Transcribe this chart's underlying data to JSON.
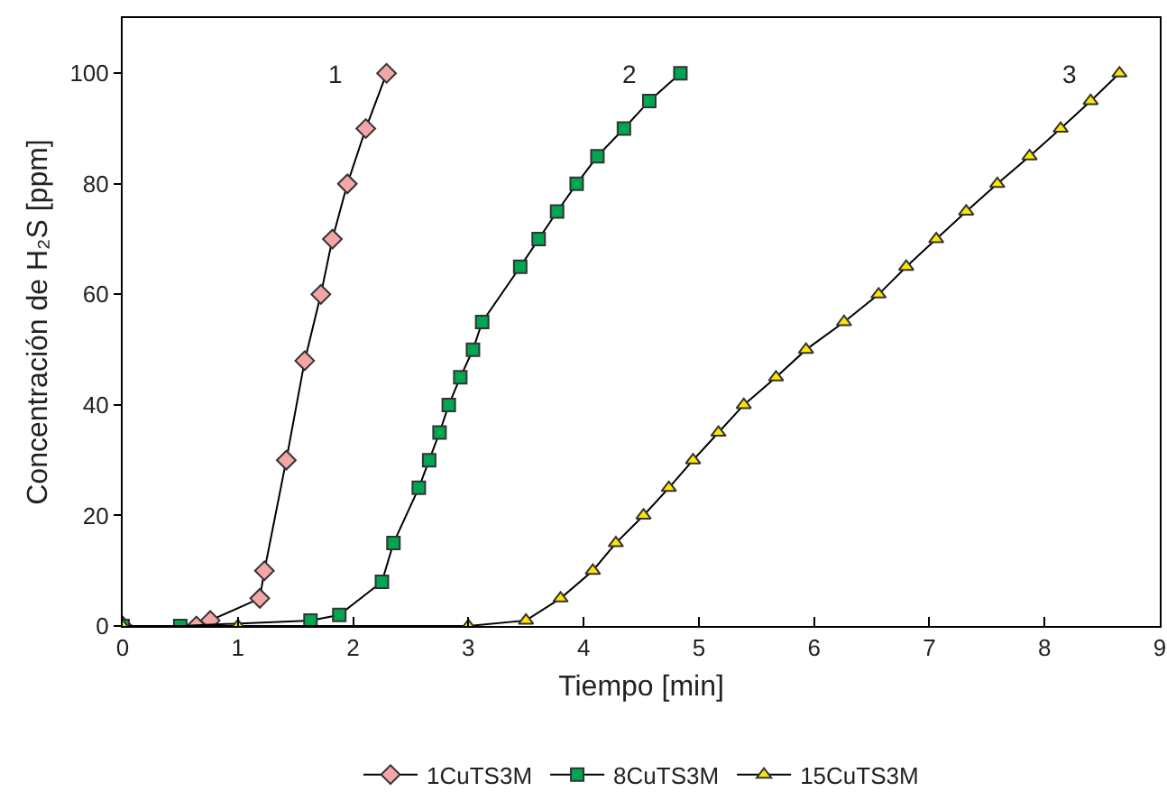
{
  "chart_data": {
    "type": "line",
    "xlabel": "Tiempo [min]",
    "ylabel": "Concentración de H₂S [ppm]",
    "xlim": [
      0,
      9
    ],
    "xticks": [
      0,
      1,
      2,
      3,
      4,
      5,
      6,
      7,
      8,
      9
    ],
    "ylim": [
      0,
      110
    ],
    "yticks": [
      0,
      20,
      40,
      60,
      80,
      100
    ],
    "grid": false,
    "legend": "bottom",
    "line_style": "solid",
    "series": [
      {
        "name": "1CuTS3M",
        "color": "#f4a6a6",
        "marker": "diamond",
        "x": [
          0,
          0.64,
          0.76,
          1.19,
          1.23,
          1.42,
          1.58,
          1.72,
          1.82,
          1.95,
          2.11,
          2.29
        ],
        "values": [
          0,
          0,
          1,
          5,
          10,
          30,
          48,
          60,
          70,
          80,
          90,
          100
        ]
      },
      {
        "name": "8CuTS3M",
        "color": "#00a651",
        "marker": "square",
        "x": [
          0,
          0.5,
          1.63,
          1.88,
          2.25,
          2.35,
          2.57,
          2.66,
          2.75,
          2.83,
          2.93,
          3.04,
          3.12,
          3.45,
          3.61,
          3.77,
          3.94,
          4.12,
          4.35,
          4.57,
          4.84
        ],
        "values": [
          0,
          0,
          1,
          2,
          8,
          15,
          25,
          30,
          35,
          40,
          45,
          50,
          55,
          65,
          70,
          75,
          80,
          85,
          90,
          95,
          100
        ]
      },
      {
        "name": "15CuTS3M",
        "color": "#ffe600",
        "marker": "triangle",
        "x": [
          0,
          1,
          3,
          3.5,
          3.8,
          4.08,
          4.28,
          4.52,
          4.74,
          4.95,
          5.17,
          5.39,
          5.67,
          5.93,
          6.26,
          6.56,
          6.8,
          7.06,
          7.32,
          7.59,
          7.87,
          8.14,
          8.4,
          8.65
        ],
        "values": [
          0,
          0,
          0,
          1,
          5,
          10,
          15,
          20,
          25,
          30,
          35,
          40,
          45,
          50,
          55,
          60,
          65,
          70,
          75,
          80,
          85,
          90,
          95,
          100
        ]
      }
    ],
    "annotations": [
      "1",
      "2",
      "3"
    ]
  }
}
